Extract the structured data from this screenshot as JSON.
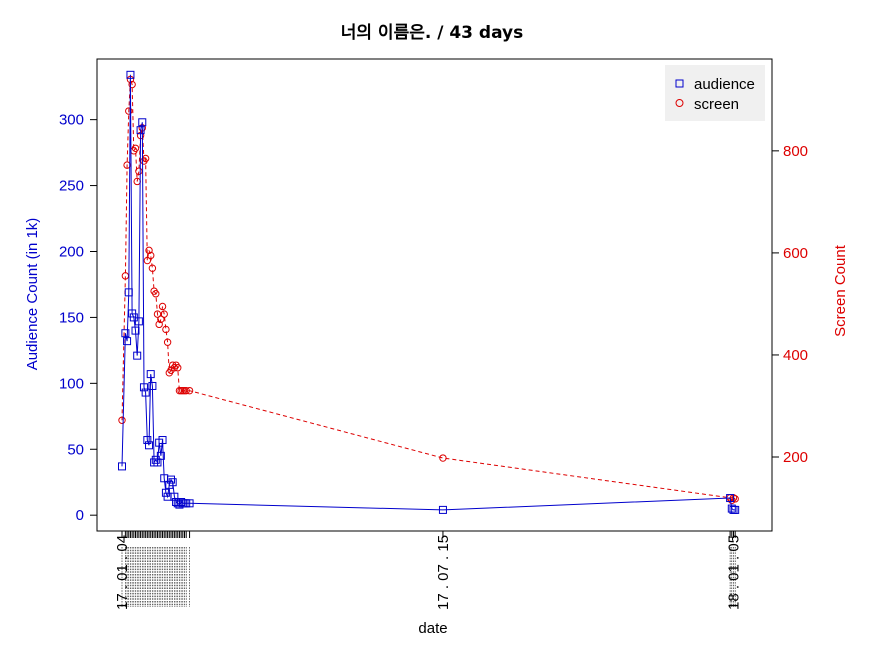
{
  "title": "너의 이름은. / 43 days",
  "chart_data": {
    "type": "line",
    "title": "너의 이름은. / 43 days",
    "xlabel": "date",
    "ylabel_left": "Audience Count (in 1k)",
    "ylabel_right": "Screen Count",
    "x_tick_labels": [
      "17 . 01 . 04",
      "17 . 07 . 15",
      "18 . 01 . 05"
    ],
    "x_day_range": [
      0,
      370
    ],
    "y_left_ticks": [
      "0",
      "50",
      "100",
      "150",
      "200",
      "250",
      "300"
    ],
    "y_left_range": [
      -12,
      346
    ],
    "y_right_ticks": [
      "200",
      "400",
      "600",
      "800"
    ],
    "y_right_range": [
      55,
      980
    ],
    "legend_position": "top-right",
    "grid": false,
    "colors": {
      "audience": "#0000cc",
      "screen": "#dd0000",
      "legend_bg": "#f0f0f0"
    },
    "series": [
      {
        "name": "audience",
        "axis": "left",
        "marker": "square",
        "line": "solid",
        "day": [
          0,
          2,
          3,
          4,
          5,
          6,
          7,
          8,
          9,
          10,
          11,
          12,
          13,
          14,
          15,
          16,
          17,
          18,
          19,
          20,
          21,
          22,
          23,
          24,
          25,
          26,
          27,
          28,
          29,
          30,
          31,
          32,
          33,
          34,
          35,
          36,
          37,
          38,
          40,
          190,
          360,
          361,
          362,
          363
        ],
        "values": [
          37,
          138,
          132,
          169,
          334,
          153,
          150,
          140,
          121,
          147,
          292,
          298,
          97,
          93,
          57,
          53,
          107,
          98,
          40,
          42,
          40,
          55,
          45,
          57,
          28,
          17,
          14,
          23,
          27,
          25,
          14,
          10,
          9,
          8,
          10,
          9,
          9,
          9,
          9,
          4,
          13,
          5,
          4,
          4
        ]
      },
      {
        "name": "screen",
        "axis": "right",
        "marker": "circle",
        "line": "dashed",
        "day": [
          0,
          2,
          3,
          4,
          5,
          6,
          7,
          8,
          9,
          10,
          11,
          12,
          13,
          14,
          15,
          16,
          17,
          18,
          19,
          20,
          21,
          22,
          23,
          24,
          25,
          26,
          27,
          28,
          29,
          30,
          31,
          32,
          33,
          34,
          35,
          36,
          37,
          38,
          40,
          190,
          360,
          361,
          362,
          363
        ],
        "values": [
          272,
          555,
          772,
          878,
          940,
          930,
          800,
          805,
          740,
          760,
          830,
          845,
          780,
          785,
          585,
          605,
          595,
          570,
          525,
          520,
          480,
          460,
          470,
          495,
          480,
          450,
          425,
          365,
          370,
          380,
          375,
          380,
          375,
          330,
          330,
          330,
          330,
          330,
          330,
          198,
          120,
          115,
          120,
          118
        ]
      }
    ]
  }
}
